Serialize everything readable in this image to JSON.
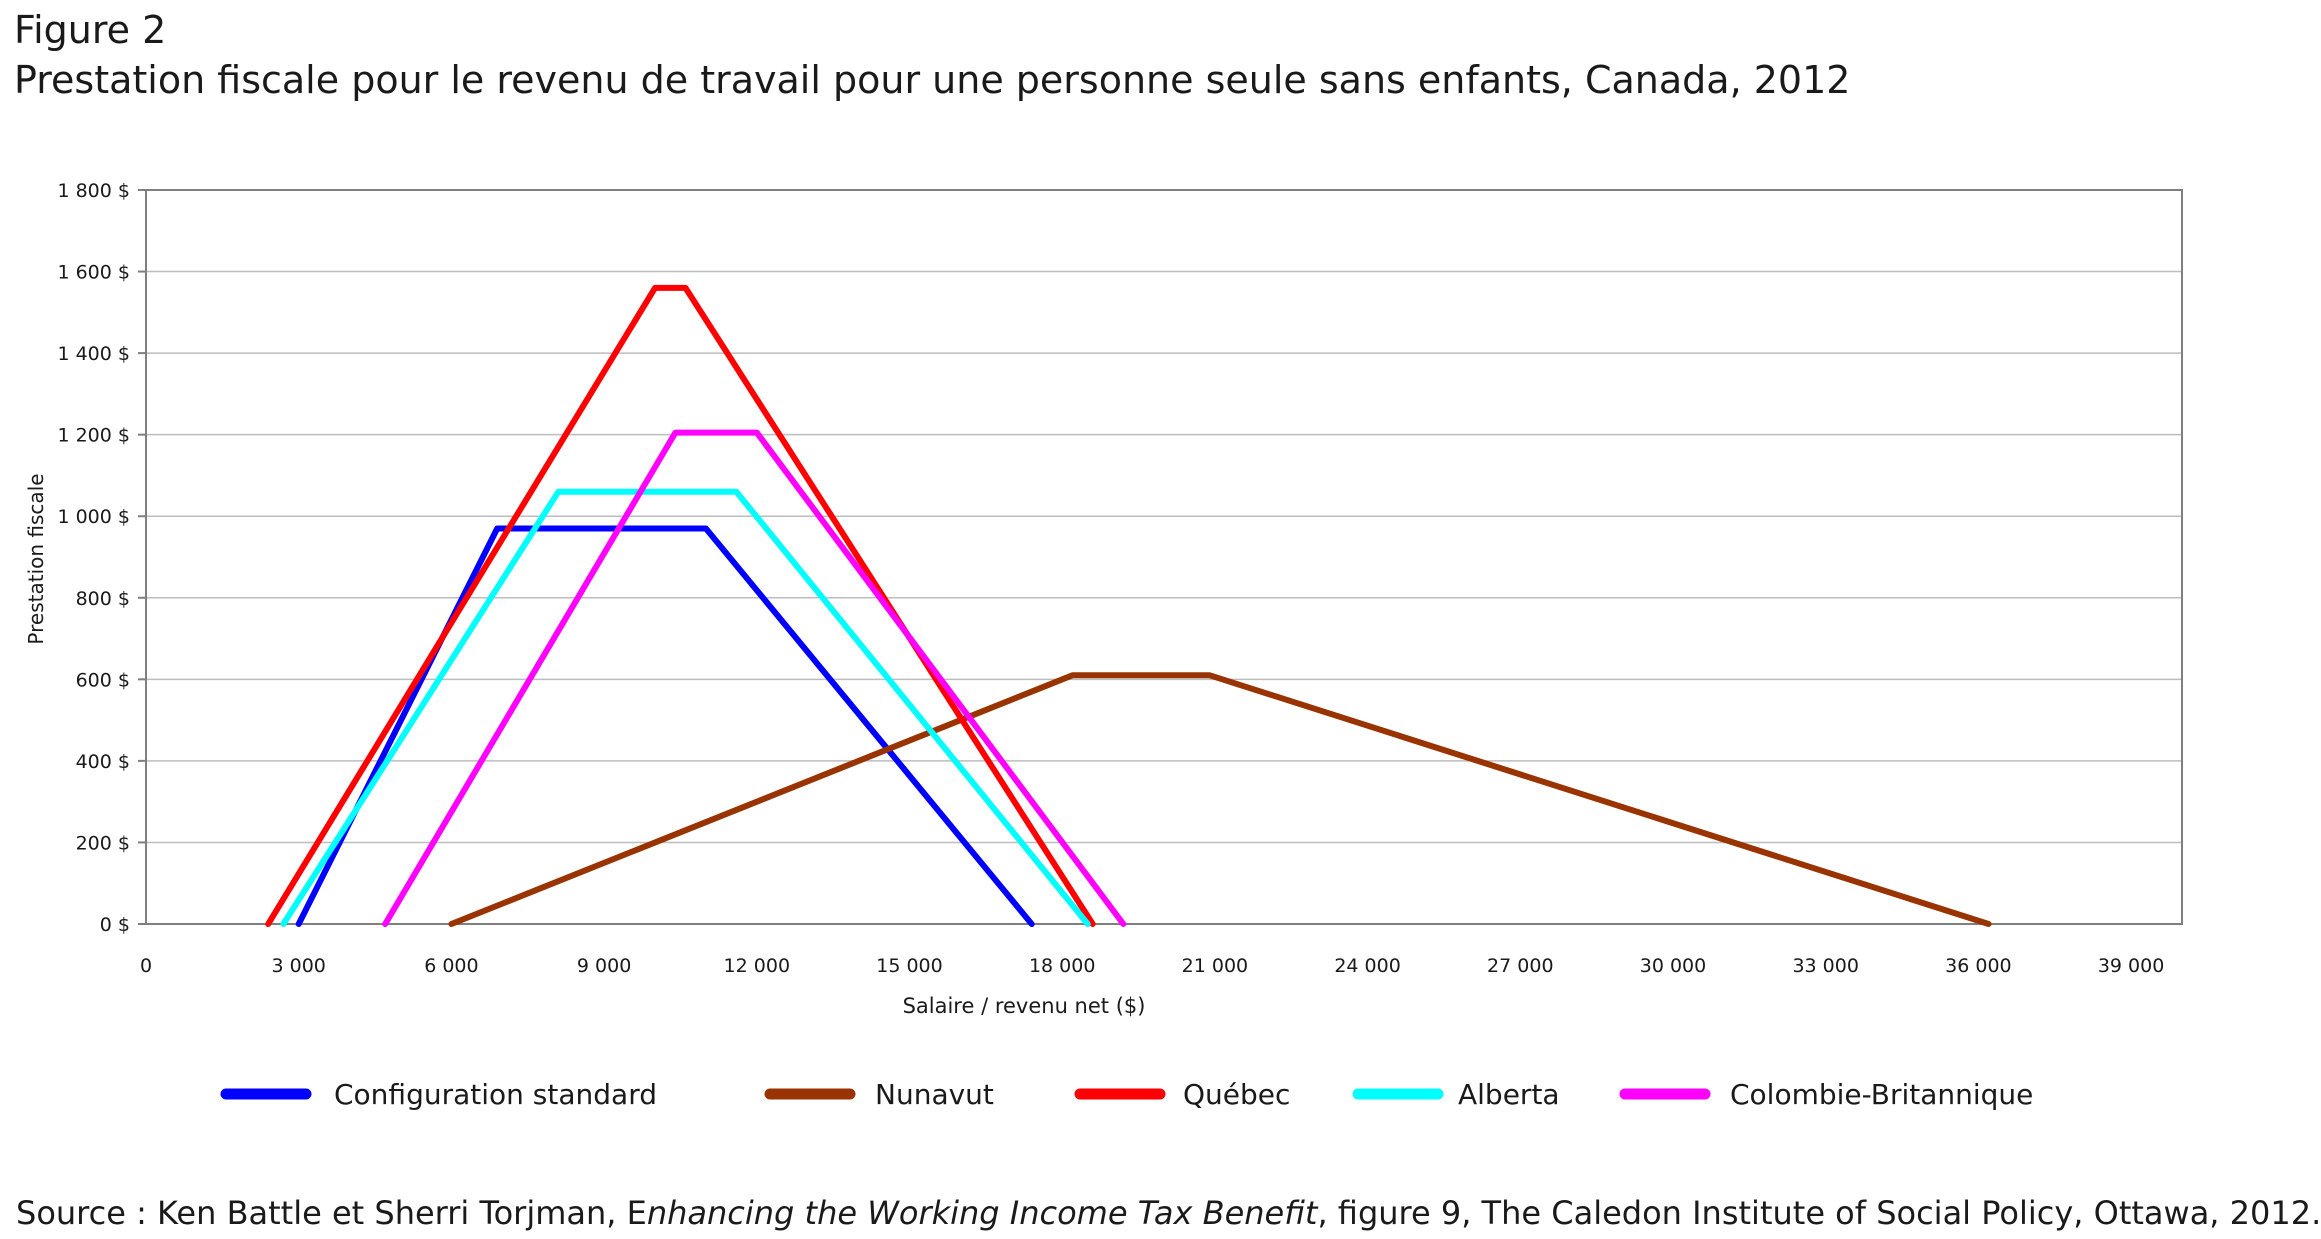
{
  "figure": {
    "label": "Figure 2",
    "title": "Prestation fiscale pour le revenu de travail pour une personne seule sans enfants, Canada, 2012"
  },
  "source": {
    "prefix": "Source : Ken Battle et Sherri Torjman, E",
    "italic": "nhancing the Working Income Tax Benefit",
    "suffix": ", figure 9, The Caledon Institute of Social Policy, Ottawa, 2012."
  },
  "chart_data": {
    "type": "line",
    "xlabel": "Salaire / revenu net ($)",
    "ylabel": "Prestation fiscale",
    "xlim": [
      0,
      40000
    ],
    "ylim": [
      0,
      1800
    ],
    "x_ticks": [
      0,
      3000,
      6000,
      9000,
      12000,
      15000,
      18000,
      21000,
      24000,
      27000,
      30000,
      33000,
      36000,
      39000
    ],
    "x_tick_labels": [
      "0",
      "3 000",
      "6 000",
      "9 000",
      "12 000",
      "15 000",
      "18 000",
      "21 000",
      "24 000",
      "27 000",
      "30 000",
      "33 000",
      "36 000",
      "39 000"
    ],
    "y_ticks": [
      0,
      200,
      400,
      600,
      800,
      1000,
      1200,
      1400,
      1600,
      1800
    ],
    "y_tick_labels": [
      "0 $",
      "200 $",
      "400 $",
      "600 $",
      "800 $",
      "1 000 $",
      "1 200 $",
      "1 400 $",
      "1 600 $",
      "1 800 $"
    ],
    "grid": true,
    "legend_position": "bottom",
    "series": [
      {
        "name": "Configuration standard",
        "color": "#0000ff",
        "x": [
          3000,
          6900,
          11000,
          17400
        ],
        "y": [
          0,
          970,
          970,
          0
        ]
      },
      {
        "name": "Nunavut",
        "color": "#993300",
        "x": [
          6000,
          18200,
          20900,
          36200
        ],
        "y": [
          0,
          610,
          610,
          0
        ]
      },
      {
        "name": "Québec",
        "color": "#ff0000",
        "x": [
          2400,
          10000,
          10600,
          18600
        ],
        "y": [
          0,
          1560,
          1560,
          0
        ]
      },
      {
        "name": "Alberta",
        "color": "#00ffff",
        "x": [
          2700,
          8100,
          11600,
          18500
        ],
        "y": [
          0,
          1060,
          1060,
          0
        ]
      },
      {
        "name": "Colombie-Britannique",
        "color": "#ff00ff",
        "x": [
          4700,
          10400,
          12000,
          19200
        ],
        "y": [
          0,
          1205,
          1205,
          0
        ]
      }
    ]
  }
}
